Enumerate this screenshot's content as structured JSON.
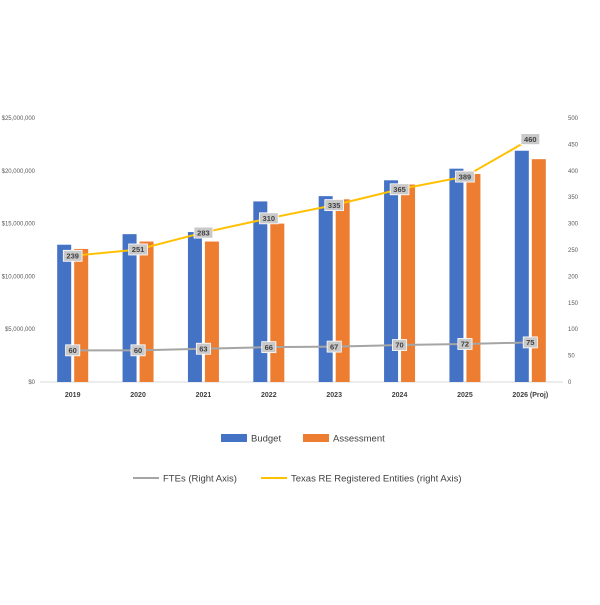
{
  "chart_data": {
    "type": "bar",
    "categories": [
      "2019",
      "2020",
      "2021",
      "2022",
      "2023",
      "2024",
      "2025",
      "2026 (Proj)"
    ],
    "series": [
      {
        "name": "Budget",
        "kind": "bar",
        "axis": "left",
        "color": "#4472C4",
        "values": [
          13000000,
          14000000,
          14200000,
          17100000,
          17600000,
          19100000,
          20200000,
          21900000
        ]
      },
      {
        "name": "Assessment",
        "kind": "bar",
        "axis": "left",
        "color": "#ED7D31",
        "values": [
          12600000,
          13300000,
          13300000,
          15000000,
          17300000,
          18700000,
          19700000,
          21100000
        ]
      },
      {
        "name": "FTEs (Right Axis)",
        "kind": "line",
        "axis": "right",
        "color": "#A5A5A5",
        "values": [
          60,
          60,
          63,
          66,
          67,
          70,
          72,
          75
        ],
        "labels": [
          "60",
          "60",
          "63",
          "66",
          "67",
          "70",
          "72",
          "75"
        ]
      },
      {
        "name": "Texas RE Registered Entities (right Axis)",
        "kind": "line",
        "axis": "right",
        "color": "#FFC000",
        "values": [
          239,
          251,
          283,
          310,
          335,
          365,
          389,
          460
        ],
        "labels": [
          "239",
          "251",
          "283",
          "310",
          "335",
          "365",
          "389",
          "460"
        ]
      }
    ],
    "y_left": {
      "min": 0,
      "max": 25000000,
      "ticks": [
        {
          "value": 0,
          "label": "$0"
        },
        {
          "value": 5000000,
          "label": "$5,000,000"
        },
        {
          "value": 10000000,
          "label": "$10,000,000"
        },
        {
          "value": 15000000,
          "label": "$15,000,000"
        },
        {
          "value": 20000000,
          "label": "$20,000,000"
        },
        {
          "value": 25000000,
          "label": "$25,000,000"
        }
      ]
    },
    "y_right": {
      "min": 0,
      "max": 500,
      "ticks": [
        {
          "value": 0,
          "label": "0"
        },
        {
          "value": 50,
          "label": "50"
        },
        {
          "value": 100,
          "label": "100"
        },
        {
          "value": 150,
          "label": "150"
        },
        {
          "value": 200,
          "label": "200"
        },
        {
          "value": 250,
          "label": "250"
        },
        {
          "value": 300,
          "label": "300"
        },
        {
          "value": 350,
          "label": "350"
        },
        {
          "value": 400,
          "label": "400"
        },
        {
          "value": 450,
          "label": "450"
        },
        {
          "value": 500,
          "label": "500"
        }
      ]
    },
    "grid": false,
    "legend_position": "bottom"
  }
}
